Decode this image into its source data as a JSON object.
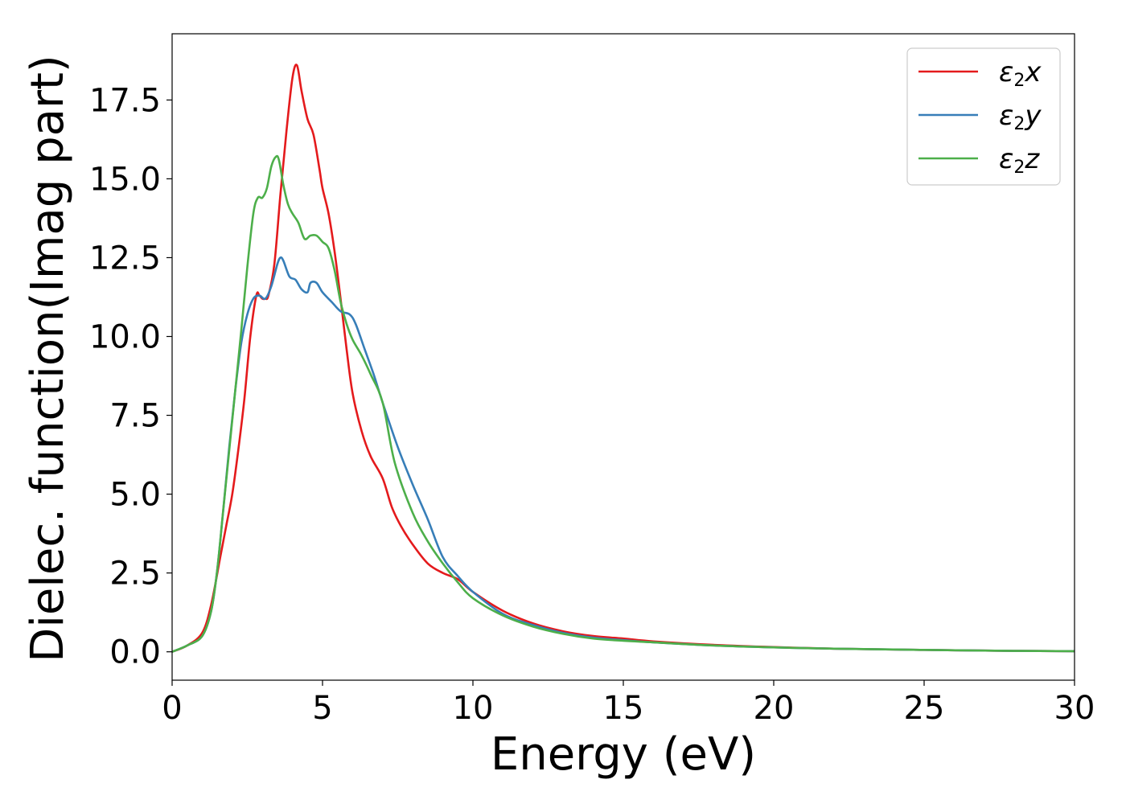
{
  "chart_data": {
    "type": "line",
    "title": "",
    "xlabel": "Energy (eV)",
    "ylabel": "Dielec. function(Imag part)",
    "xlim": [
      0,
      30
    ],
    "ylim": [
      -0.9,
      19.6
    ],
    "xticks": [
      0,
      5,
      10,
      15,
      20,
      25,
      30
    ],
    "xtick_labels": [
      "0",
      "5",
      "10",
      "15",
      "20",
      "25",
      "30"
    ],
    "yticks": [
      0.0,
      2.5,
      5.0,
      7.5,
      10.0,
      12.5,
      15.0,
      17.5
    ],
    "ytick_labels": [
      "0.0",
      "2.5",
      "5.0",
      "7.5",
      "10.0",
      "12.5",
      "15.0",
      "17.5"
    ],
    "grid": false,
    "legend_position": "top-right",
    "series": [
      {
        "name": "ε2x",
        "legend_main": "ε",
        "legend_sub": "2",
        "legend_suffix": "x",
        "color": "#e41a1c",
        "x": [
          0,
          0.5,
          1.0,
          1.3,
          1.6,
          1.8,
          2.0,
          2.2,
          2.4,
          2.6,
          2.8,
          2.9,
          3.0,
          3.1,
          3.2,
          3.4,
          3.6,
          3.8,
          4.0,
          4.15,
          4.3,
          4.5,
          4.7,
          4.9,
          5.0,
          5.2,
          5.4,
          5.6,
          5.8,
          6.0,
          6.3,
          6.6,
          7.0,
          7.3,
          7.6,
          8.0,
          8.5,
          9.0,
          9.5,
          10.0,
          11.0,
          12.0,
          13.0,
          14.0,
          15.0,
          16.0,
          18.0,
          20.0,
          22.0,
          25.0,
          28.0,
          30.0
        ],
        "y": [
          0.0,
          0.2,
          0.6,
          1.5,
          3.0,
          4.0,
          5.0,
          6.4,
          8.0,
          10.0,
          11.3,
          11.3,
          11.2,
          11.2,
          11.3,
          12.3,
          14.5,
          16.5,
          18.2,
          18.6,
          17.8,
          16.9,
          16.4,
          15.3,
          14.7,
          13.9,
          12.7,
          11.2,
          9.6,
          8.2,
          7.0,
          6.2,
          5.5,
          4.6,
          4.0,
          3.4,
          2.8,
          2.5,
          2.3,
          1.9,
          1.3,
          0.9,
          0.65,
          0.5,
          0.42,
          0.33,
          0.22,
          0.15,
          0.1,
          0.06,
          0.03,
          0.02
        ]
      },
      {
        "name": "ε2y",
        "legend_main": "ε",
        "legend_sub": "2",
        "legend_suffix": "y",
        "color": "#377eb8",
        "x": [
          0,
          0.5,
          1.0,
          1.3,
          1.5,
          1.7,
          1.9,
          2.1,
          2.3,
          2.5,
          2.7,
          2.9,
          3.1,
          3.3,
          3.5,
          3.6,
          3.7,
          3.9,
          4.1,
          4.3,
          4.5,
          4.6,
          4.8,
          5.0,
          5.3,
          5.6,
          5.9,
          6.1,
          6.4,
          6.7,
          7.0,
          7.5,
          8.0,
          8.5,
          9.0,
          9.5,
          10.0,
          11.0,
          12.0,
          13.0,
          14.0,
          15.0,
          16.0,
          18.0,
          20.0,
          22.0,
          25.0,
          28.0,
          30.0
        ],
        "y": [
          0.0,
          0.2,
          0.5,
          1.3,
          2.6,
          4.5,
          6.5,
          8.3,
          9.8,
          10.7,
          11.2,
          11.3,
          11.2,
          11.6,
          12.3,
          12.5,
          12.4,
          11.9,
          11.8,
          11.5,
          11.4,
          11.7,
          11.7,
          11.4,
          11.1,
          10.8,
          10.7,
          10.4,
          9.6,
          8.8,
          7.9,
          6.5,
          5.3,
          4.2,
          3.0,
          2.4,
          1.9,
          1.2,
          0.85,
          0.6,
          0.45,
          0.37,
          0.3,
          0.2,
          0.14,
          0.1,
          0.06,
          0.03,
          0.02
        ]
      },
      {
        "name": "ε2z",
        "legend_main": "ε",
        "legend_sub": "2",
        "legend_suffix": "z",
        "color": "#4daf4a",
        "x": [
          0,
          0.5,
          1.0,
          1.3,
          1.5,
          1.7,
          1.9,
          2.1,
          2.3,
          2.5,
          2.7,
          2.85,
          3.0,
          3.15,
          3.3,
          3.45,
          3.55,
          3.7,
          3.85,
          4.0,
          4.2,
          4.4,
          4.6,
          4.8,
          5.0,
          5.2,
          5.4,
          5.6,
          5.8,
          6.0,
          6.3,
          6.6,
          7.0,
          7.4,
          8.0,
          8.5,
          9.0,
          9.5,
          10.0,
          11.0,
          12.0,
          13.0,
          14.0,
          15.0,
          16.0,
          18.0,
          20.0,
          22.0,
          25.0,
          28.0,
          30.0
        ],
        "y": [
          0.0,
          0.2,
          0.5,
          1.3,
          2.6,
          4.5,
          6.4,
          8.3,
          10.2,
          12.2,
          13.9,
          14.4,
          14.4,
          14.7,
          15.4,
          15.7,
          15.6,
          14.8,
          14.2,
          13.9,
          13.6,
          13.1,
          13.2,
          13.2,
          13.0,
          12.8,
          12.1,
          11.1,
          10.4,
          9.9,
          9.4,
          8.8,
          7.9,
          6.0,
          4.4,
          3.5,
          2.8,
          2.2,
          1.7,
          1.15,
          0.8,
          0.57,
          0.42,
          0.35,
          0.3,
          0.2,
          0.14,
          0.1,
          0.06,
          0.03,
          0.02
        ]
      }
    ]
  }
}
